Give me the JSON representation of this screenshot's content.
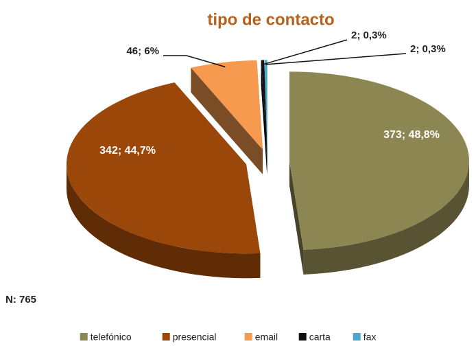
{
  "chart_data": {
    "type": "pie",
    "title": "tipo de contacto",
    "categories": [
      "telefónico",
      "presencial",
      "email",
      "carta",
      "fax"
    ],
    "values": [
      373,
      342,
      46,
      2,
      2
    ],
    "value_labels": [
      "373; 48,8%",
      "342; 44,7%",
      "46; 6%",
      "2; 0,3%",
      "2; 0,3%"
    ],
    "colors": [
      "#8c8653",
      "#9b470a",
      "#f59a4e",
      "#111111",
      "#4aa8cc"
    ],
    "annotation": "N: 765",
    "legend": "bottom"
  }
}
